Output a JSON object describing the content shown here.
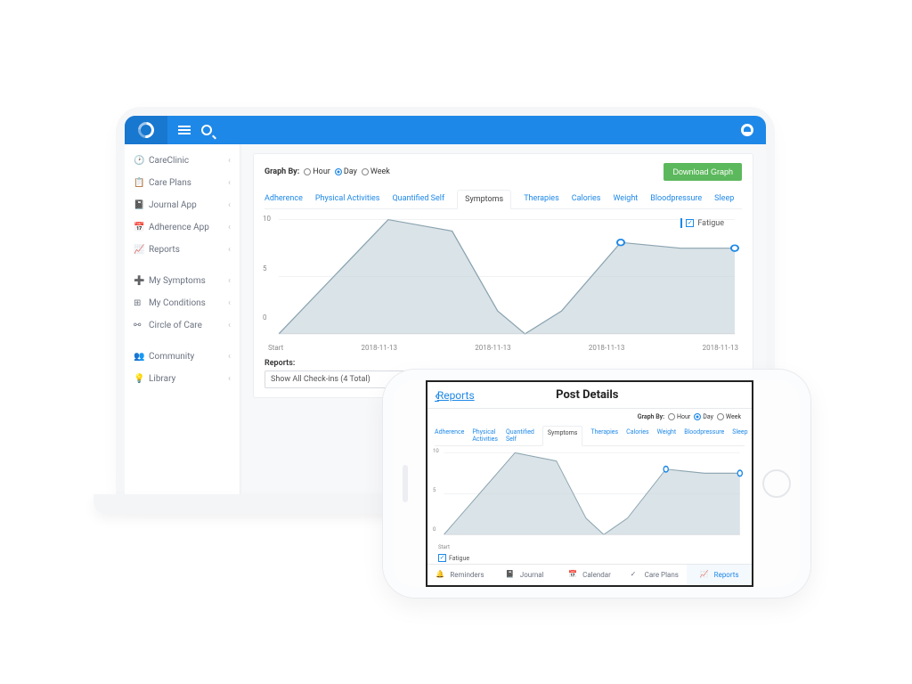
{
  "sidebar": {
    "items": [
      {
        "label": "CareClinic"
      },
      {
        "label": "Care Plans"
      },
      {
        "label": "Journal App"
      },
      {
        "label": "Adherence App"
      },
      {
        "label": "Reports"
      }
    ],
    "items2": [
      {
        "label": "My Symptoms"
      },
      {
        "label": "My Conditions"
      },
      {
        "label": "Circle of Care"
      }
    ],
    "items3": [
      {
        "label": "Community"
      },
      {
        "label": "Library"
      }
    ]
  },
  "graphby": {
    "label": "Graph By:",
    "opt_hour": "Hour",
    "opt_day": "Day",
    "opt_week": "Week"
  },
  "download_label": "Download Graph",
  "tabs": [
    "Adherence",
    "Physical Activities",
    "Quantified Self",
    "Symptoms",
    "Therapies",
    "Calories",
    "Weight",
    "Bloodpressure",
    "Sleep"
  ],
  "active_tab_index": 3,
  "chart": {
    "type": "area",
    "y_ticks": [
      "10",
      "5",
      "0"
    ],
    "x_ticks": [
      "Start",
      "2018-11-13",
      "2018-11-13",
      "2018-11-13",
      "2018-11-13"
    ],
    "fill": "#cdd9df",
    "stroke": "#8aa3b0",
    "marker_stroke": "#1e88e8",
    "grid_color": "#e8eaee",
    "points": [
      [
        0,
        0
      ],
      [
        12,
        5
      ],
      [
        24,
        10
      ],
      [
        38,
        9
      ],
      [
        48,
        2
      ],
      [
        54,
        0
      ],
      [
        62,
        2
      ],
      [
        75,
        8
      ],
      [
        88,
        7.5
      ],
      [
        100,
        7.5
      ]
    ],
    "markers_at": [
      75,
      100
    ]
  },
  "legend": {
    "fatigue": "Fatigue"
  },
  "reports_label": "Reports:",
  "reports_select": "Show All Check-ins (4 Total)",
  "phone": {
    "back": "Reports",
    "title": "Post Details",
    "x_start": "Start",
    "tabbar": [
      {
        "label": "Reminders"
      },
      {
        "label": "Journal"
      },
      {
        "label": "Calendar"
      },
      {
        "label": "Care Plans"
      },
      {
        "label": "Reports"
      }
    ],
    "active_tab_index": 4
  }
}
